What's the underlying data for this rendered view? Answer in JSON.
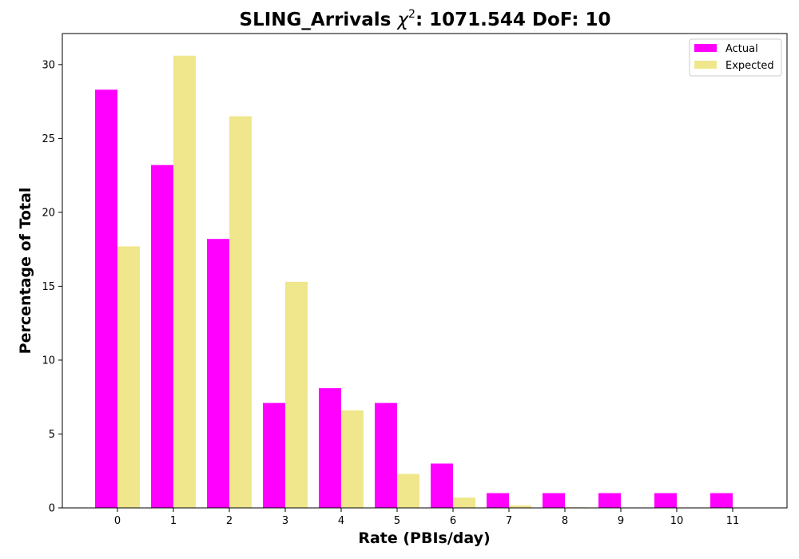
{
  "chart_data": {
    "type": "bar",
    "title_prefix": "SLING_Arrivals ",
    "title_symbol": "χ",
    "title_exponent": "2",
    "title_suffix": ": 1071.544 DoF: 10",
    "xlabel": "Rate (PBIs/day)",
    "ylabel": "Percentage of Total",
    "categories": [
      "0",
      "1",
      "2",
      "3",
      "4",
      "5",
      "6",
      "7",
      "8",
      "9",
      "10",
      "11"
    ],
    "ylim": [
      0,
      32.1
    ],
    "yticks": [
      "0",
      "5",
      "10",
      "15",
      "20",
      "25",
      "30"
    ],
    "legend_position": "upper right",
    "grid": false,
    "series": [
      {
        "name": "Actual",
        "color": "#ff00ff",
        "values": [
          28.3,
          23.2,
          18.2,
          7.1,
          8.1,
          7.1,
          3.0,
          1.0,
          1.0,
          1.0,
          1.0,
          1.0
        ]
      },
      {
        "name": "Expected",
        "color": "#f0e68c",
        "values": [
          17.7,
          30.6,
          26.5,
          15.3,
          6.6,
          2.3,
          0.7,
          0.17,
          0.04,
          0.01,
          0.0,
          0.0
        ]
      }
    ]
  }
}
